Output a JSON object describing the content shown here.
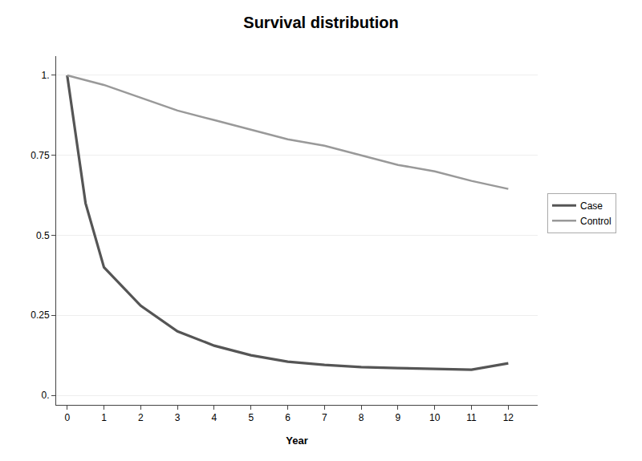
{
  "chart_data": {
    "type": "line",
    "title": "Survival distribution",
    "xlabel": "Year",
    "series": [
      {
        "name": "Case",
        "color": "#555555",
        "x": [
          0,
          0.5,
          1,
          2,
          3,
          4,
          5,
          6,
          7,
          8,
          9,
          10,
          11,
          12
        ],
        "values": [
          1.0,
          0.6,
          0.4,
          0.28,
          0.2,
          0.155,
          0.125,
          0.105,
          0.095,
          0.088,
          0.085,
          0.082,
          0.08,
          0.1
        ]
      },
      {
        "name": "Control",
        "color": "#999999",
        "x": [
          0,
          1,
          2,
          3,
          4,
          5,
          6,
          7,
          8,
          9,
          10,
          11,
          12
        ],
        "values": [
          1.0,
          0.97,
          0.93,
          0.89,
          0.86,
          0.83,
          0.8,
          0.78,
          0.75,
          0.72,
          0.7,
          0.67,
          0.645
        ]
      }
    ],
    "xlim": [
      -0.3,
      12.8
    ],
    "xticks": [
      0,
      1,
      2,
      3,
      4,
      5,
      6,
      7,
      8,
      9,
      10,
      11,
      12
    ],
    "ylim": [
      -0.03,
      1.06
    ],
    "yticks": [
      {
        "value": 0.0,
        "label": "0."
      },
      0.25,
      0.5,
      0.75,
      {
        "value": 1.0,
        "label": "1."
      }
    ],
    "grid": true,
    "legend": "right"
  }
}
